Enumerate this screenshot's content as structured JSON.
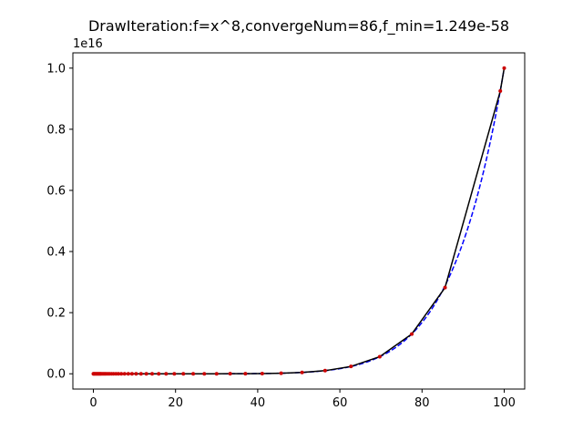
{
  "chart_data": {
    "type": "line",
    "title": "DrawIteration:f=x^8,convergeNum=86,f_min=1.249e-58",
    "xlabel": "",
    "ylabel": "",
    "y_offset_label": "1e16",
    "y_scale_factor": 1e+16,
    "xlim": [
      -4.99,
      104.99
    ],
    "ylim": [
      -0.05,
      1.05
    ],
    "x_ticks": [
      0,
      20,
      40,
      60,
      80,
      100
    ],
    "x_tick_labels": [
      "0",
      "20",
      "40",
      "60",
      "80",
      "100"
    ],
    "y_ticks": [
      0.0,
      0.2,
      0.4,
      0.6,
      0.8,
      1.0
    ],
    "y_tick_labels": [
      "0.0",
      "0.2",
      "0.4",
      "0.6",
      "0.8",
      "1.0"
    ],
    "grid": false,
    "series": [
      {
        "style": "dashed",
        "color": "#0000ff",
        "function": "x^8",
        "x_range": [
          0,
          100
        ],
        "samples": 201
      },
      {
        "style": "solid",
        "color": "#000000",
        "marker": "o",
        "marker_color": "#cc0000",
        "x": [
          100,
          99.05,
          85.6,
          77.5,
          69.7,
          62.7,
          56.4,
          50.8,
          45.7,
          41.1,
          37.0,
          33.3,
          30.0,
          27.0,
          24.3,
          21.9,
          19.7,
          17.7,
          15.9,
          14.3,
          12.9,
          11.6,
          10.4,
          9.4,
          8.5,
          7.6,
          6.8,
          6.1,
          5.5,
          4.9,
          4.4,
          3.9,
          3.5,
          3.1,
          2.8,
          2.5,
          2.2,
          1.9,
          1.7,
          1.5,
          1.3,
          1.1,
          0.9,
          0.7,
          0.5,
          0.3,
          0.1,
          0.0
        ],
        "y": [
          1.0,
          0.925,
          0.282,
          0.13,
          0.056,
          0.024,
          0.0102,
          0.0044,
          0.0019,
          0.0008,
          0.00035,
          0.00015,
          6.6e-05,
          3e-05,
          1e-05,
          5e-06,
          2e-06,
          0.0,
          0.0,
          0.0,
          0.0,
          0.0,
          0.0,
          0.0,
          0.0,
          0.0,
          0.0,
          0.0,
          0.0,
          0.0,
          0.0,
          0.0,
          0.0,
          0.0,
          0.0,
          0.0,
          0.0,
          0.0,
          0.0,
          0.0,
          0.0,
          0.0,
          0.0,
          0.0,
          0.0,
          0.0,
          0.0,
          0.0
        ]
      }
    ]
  }
}
